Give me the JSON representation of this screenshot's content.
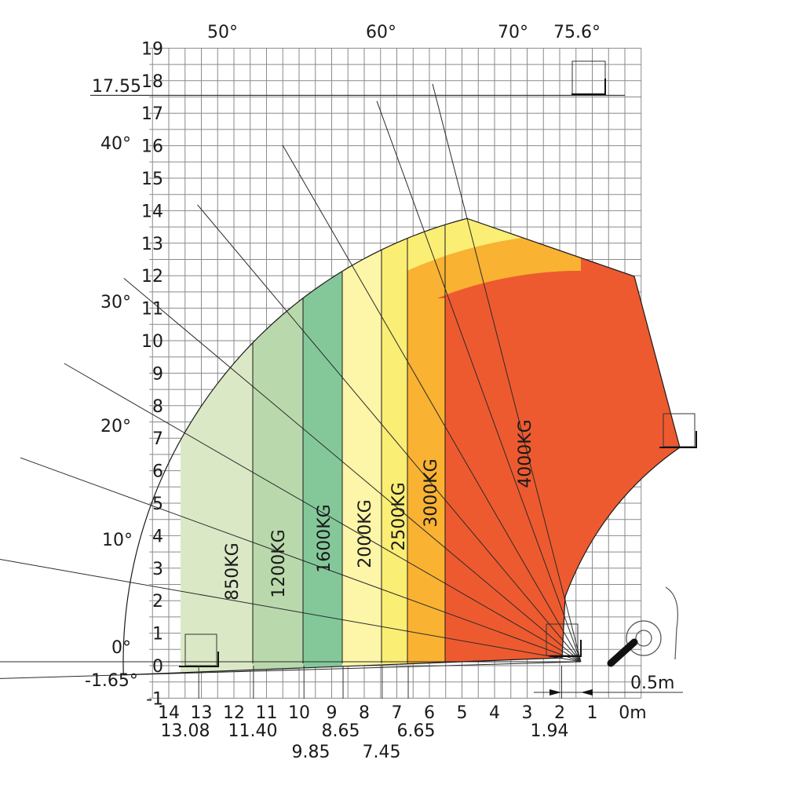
{
  "chart_data": {
    "type": "area",
    "title": "",
    "x_ticks": [
      "14",
      "13",
      "12",
      "11",
      "10",
      "9",
      "8",
      "7",
      "6",
      "5",
      "4",
      "3",
      "2",
      "1",
      "0m"
    ],
    "y_ticks": [
      "19",
      "18",
      "17",
      "16",
      "15",
      "14",
      "13",
      "12",
      "11",
      "10",
      "9",
      "8",
      "7",
      "6",
      "5",
      "4",
      "3",
      "2",
      "1",
      "0",
      "-1"
    ],
    "xlim": [
      14.6,
      -0.5
    ],
    "ylim": [
      -1,
      19
    ],
    "grid": true,
    "angle_lines": [
      {
        "label": "-1.65°",
        "angle": -1.65
      },
      {
        "label": "0°",
        "angle": 0
      },
      {
        "label": "10°",
        "angle": 10
      },
      {
        "label": "20°",
        "angle": 20
      },
      {
        "label": "30°",
        "angle": 30
      },
      {
        "label": "40°",
        "angle": 40
      },
      {
        "label": "50°",
        "angle": 50
      },
      {
        "label": "60°",
        "angle": 60
      },
      {
        "label": "70°",
        "angle": 70
      },
      {
        "label": "75.6°",
        "angle": 75.6
      }
    ],
    "reach_markers": [
      {
        "label": "13.08",
        "value": 13.08
      },
      {
        "label": "11.40",
        "value": 11.4
      },
      {
        "label": "9.85",
        "value": 9.85
      },
      {
        "label": "8.65",
        "value": 8.65
      },
      {
        "label": "7.45",
        "value": 7.45
      },
      {
        "label": "6.65",
        "value": 6.65
      },
      {
        "label": "1.94",
        "value": 1.94
      }
    ],
    "max_height": {
      "label": "17.55",
      "value": 17.55
    },
    "scale_label": "0.5m",
    "load_zones": [
      {
        "label": "850KG",
        "load_kg": 850,
        "x_from": 13.08,
        "x_to": 11.4,
        "color": "#dbe8c6"
      },
      {
        "label": "1200KG",
        "load_kg": 1200,
        "x_from": 11.4,
        "x_to": 9.85,
        "color": "#b9d9ac"
      },
      {
        "label": "1600KG",
        "load_kg": 1600,
        "x_from": 9.85,
        "x_to": 8.65,
        "color": "#84c89a"
      },
      {
        "label": "2000KG",
        "load_kg": 2000,
        "x_from": 8.65,
        "x_to": 7.45,
        "color": "#fdf5a8"
      },
      {
        "label": "2500KG",
        "load_kg": 2500,
        "x_from": 7.45,
        "x_to": 6.65,
        "color": "#fbee75"
      },
      {
        "label": "3000KG",
        "load_kg": 3000,
        "x_from": 6.65,
        "x_to": 5.5,
        "color": "#f9b232"
      },
      {
        "label": "4000KG",
        "load_kg": 4000,
        "x_from": 5.5,
        "x_to": 0.6,
        "color": "#ee5a2f"
      }
    ]
  }
}
